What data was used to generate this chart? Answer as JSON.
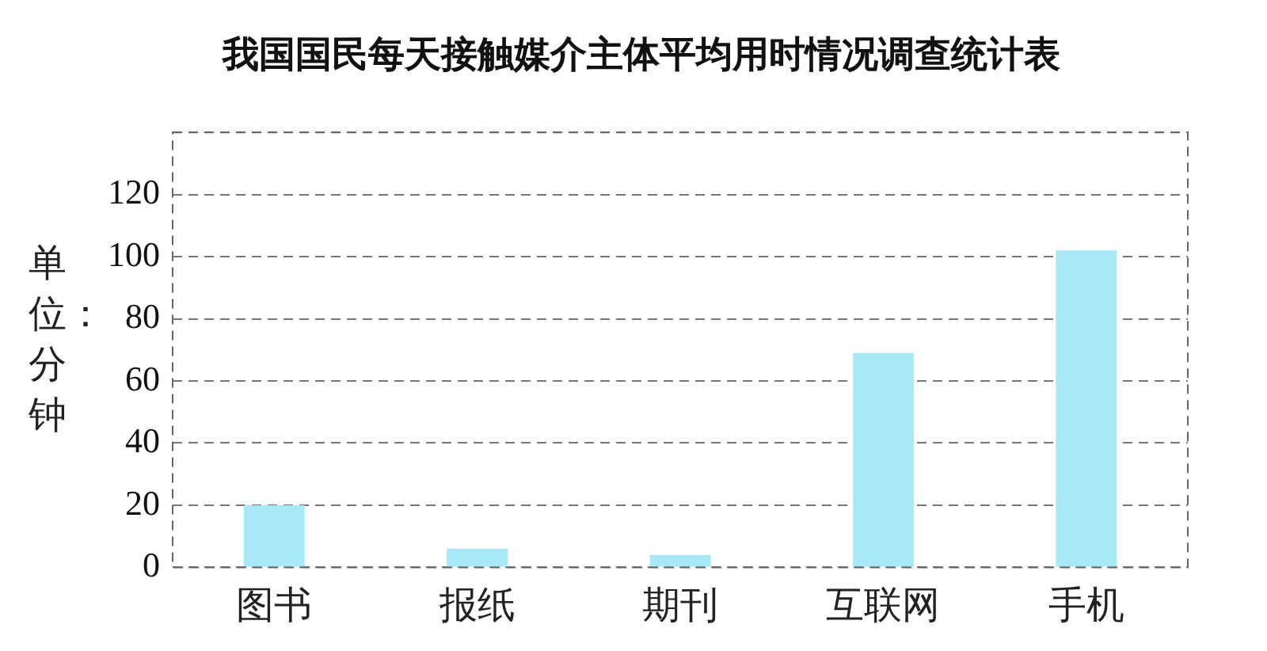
{
  "chart_data": {
    "type": "bar",
    "title": "我国国民每天接触媒介主体平均用时情况调查统计表",
    "ylabel": "单位：分钟",
    "categories": [
      "图书",
      "报纸",
      "期刊",
      "互联网",
      "手机"
    ],
    "values": [
      20,
      6,
      4,
      69,
      102
    ],
    "color": "#a8e8f8",
    "ylim": [
      0,
      140
    ],
    "yticks": [
      0,
      20,
      40,
      60,
      80,
      100,
      120,
      {
        "value": 140,
        "label": null
      }
    ],
    "grid": "y",
    "legend": false
  }
}
